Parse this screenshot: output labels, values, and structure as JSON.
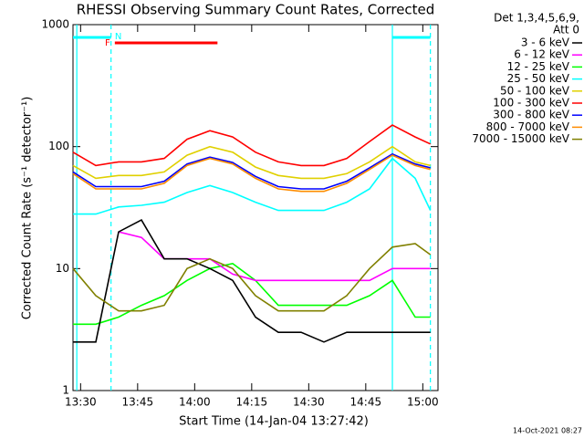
{
  "chart_data": {
    "type": "line",
    "title": "RHESSI Observing Summary Count Rates, Corrected",
    "x_label": "Start Time (14-Jan-04 13:27:42)",
    "y_label": "Corrected Count Rate (s⁻¹ detector⁻¹)",
    "legend_header": [
      "Det 1,3,4,5,6,9,",
      "Att 0"
    ],
    "footer": "14-Oct-2021 08:27",
    "log_y": true,
    "xlim": [
      "13:28",
      "15:04"
    ],
    "xticks": [
      "13:30",
      "13:45",
      "14:00",
      "14:15",
      "14:30",
      "14:45",
      "15:00"
    ],
    "ylim": [
      1,
      1000
    ],
    "yticks": [
      1,
      10,
      100,
      1000
    ],
    "x": [
      "13:28",
      "13:34",
      "13:40",
      "13:46",
      "13:52",
      "13:58",
      "14:04",
      "14:10",
      "14:16",
      "14:22",
      "14:28",
      "14:34",
      "14:40",
      "14:46",
      "14:52",
      "14:58",
      "15:02"
    ],
    "series": [
      {
        "name": "3 - 6 keV",
        "color": "#000000",
        "values": [
          2.5,
          2.5,
          20,
          25,
          12,
          12,
          10,
          8,
          4,
          3,
          3,
          2.5,
          3,
          3,
          3,
          3,
          3
        ]
      },
      {
        "name": "6 - 12 keV",
        "color": "#ff00ff",
        "values": [
          null,
          null,
          20,
          18,
          12,
          12,
          12,
          9,
          8,
          8,
          8,
          8,
          8,
          8,
          10,
          10,
          10
        ]
      },
      {
        "name": "12 - 25 keV",
        "color": "#00ff00",
        "values": [
          3.5,
          3.5,
          4,
          5,
          6,
          8,
          10,
          11,
          8,
          5,
          5,
          5,
          5,
          6,
          8,
          4,
          4
        ]
      },
      {
        "name": "25 - 50 keV",
        "color": "#00ffff",
        "values": [
          28,
          28,
          32,
          33,
          35,
          42,
          48,
          42,
          35,
          30,
          30,
          30,
          35,
          45,
          80,
          55,
          30
        ]
      },
      {
        "name": "50 - 100 keV",
        "color": "#e0d000",
        "values": [
          70,
          55,
          58,
          58,
          62,
          85,
          100,
          90,
          68,
          58,
          55,
          55,
          60,
          75,
          100,
          75,
          70
        ]
      },
      {
        "name": "100 - 300 keV",
        "color": "#ff0000",
        "values": [
          90,
          70,
          75,
          75,
          80,
          115,
          135,
          120,
          90,
          75,
          70,
          70,
          80,
          110,
          150,
          120,
          105
        ]
      },
      {
        "name": "300 - 800 keV",
        "color": "#0000ff",
        "values": [
          62,
          47,
          47,
          47,
          52,
          72,
          82,
          74,
          57,
          47,
          45,
          45,
          52,
          67,
          87,
          72,
          67
        ]
      },
      {
        "name": "800 - 7000 keV",
        "color": "#ff8c00",
        "values": [
          60,
          45,
          45,
          45,
          50,
          70,
          80,
          72,
          55,
          45,
          43,
          43,
          50,
          65,
          85,
          70,
          65
        ]
      },
      {
        "name": "7000 - 15000 keV",
        "color": "#808000",
        "values": [
          10,
          6,
          4.5,
          4.5,
          5,
          10,
          12,
          10,
          6,
          4.5,
          4.5,
          4.5,
          6,
          10,
          15,
          16,
          13
        ]
      }
    ],
    "markers": [
      {
        "x": "13:29",
        "style": "solid",
        "color": "#00ffff"
      },
      {
        "x": "13:38",
        "style": "dashed",
        "color": "#00ffff"
      },
      {
        "x": "14:52",
        "style": "solid",
        "color": "#00ffff"
      },
      {
        "x": "15:02",
        "style": "dashed",
        "color": "#00ffff"
      }
    ],
    "flag_bars": [
      {
        "label": "N",
        "start": "13:28",
        "end": "13:38",
        "color": "#00ffff"
      },
      {
        "label": "F",
        "start": "13:39",
        "end": "14:06",
        "color": "#ff0000"
      },
      {
        "start": "14:52",
        "end": "15:02",
        "color": "#00ffff"
      }
    ]
  }
}
